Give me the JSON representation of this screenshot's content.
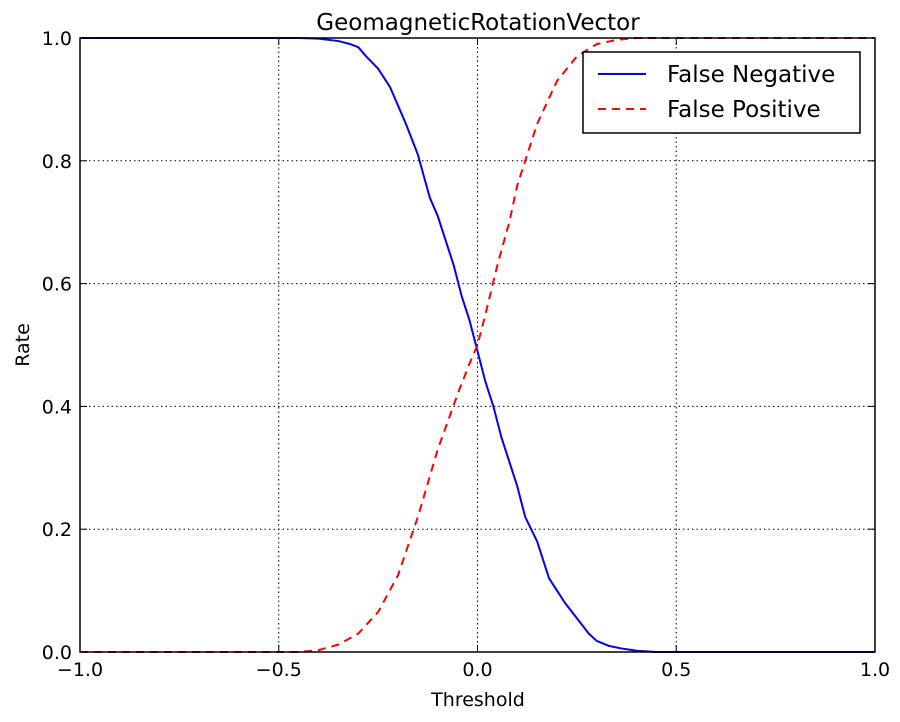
{
  "chart_data": {
    "type": "line",
    "title": "GeomagneticRotationVector",
    "xlabel": "Threshold",
    "ylabel": "Rate",
    "xlim": [
      -1.0,
      1.0
    ],
    "ylim": [
      0.0,
      1.0
    ],
    "xticks": [
      -1.0,
      -0.5,
      0.0,
      0.5,
      1.0
    ],
    "yticks": [
      0.0,
      0.2,
      0.4,
      0.6,
      0.8,
      1.0
    ],
    "xtick_labels": [
      "−1.0",
      "−0.5",
      "0.0",
      "0.5",
      "1.0"
    ],
    "ytick_labels": [
      "0.0",
      "0.2",
      "0.4",
      "0.6",
      "0.8",
      "1.0"
    ],
    "grid": true,
    "legend_position": "top-right",
    "series": [
      {
        "name": "False Negative",
        "color": "#0000ff",
        "style": "solid",
        "x": [
          -1.0,
          -0.5,
          -0.45,
          -0.4,
          -0.35,
          -0.32,
          -0.3,
          -0.28,
          -0.25,
          -0.22,
          -0.2,
          -0.18,
          -0.15,
          -0.12,
          -0.1,
          -0.08,
          -0.06,
          -0.04,
          -0.02,
          0.0,
          0.02,
          0.04,
          0.06,
          0.08,
          0.1,
          0.12,
          0.15,
          0.18,
          0.2,
          0.22,
          0.25,
          0.28,
          0.3,
          0.33,
          0.36,
          0.4,
          0.45,
          0.5,
          1.0
        ],
        "y": [
          1.0,
          1.0,
          1.0,
          0.999,
          0.995,
          0.99,
          0.985,
          0.97,
          0.95,
          0.92,
          0.89,
          0.86,
          0.81,
          0.74,
          0.71,
          0.67,
          0.63,
          0.58,
          0.54,
          0.49,
          0.44,
          0.4,
          0.35,
          0.31,
          0.27,
          0.22,
          0.18,
          0.12,
          0.1,
          0.08,
          0.055,
          0.03,
          0.018,
          0.01,
          0.006,
          0.002,
          0.0,
          0.0,
          0.0
        ]
      },
      {
        "name": "False Positive",
        "color": "#ff0000",
        "style": "dashed",
        "x": [
          -1.0,
          -0.5,
          -0.45,
          -0.4,
          -0.35,
          -0.3,
          -0.25,
          -0.2,
          -0.15,
          -0.1,
          -0.05,
          -0.02,
          0.0,
          0.02,
          0.05,
          0.08,
          0.1,
          0.15,
          0.2,
          0.25,
          0.3,
          0.35,
          0.4,
          0.45,
          0.5,
          1.0
        ],
        "y": [
          0.0,
          0.0,
          0.0,
          0.003,
          0.012,
          0.03,
          0.065,
          0.125,
          0.22,
          0.33,
          0.42,
          0.47,
          0.5,
          0.55,
          0.63,
          0.7,
          0.76,
          0.86,
          0.93,
          0.97,
          0.99,
          0.997,
          1.0,
          1.0,
          1.0,
          1.0
        ]
      }
    ]
  }
}
